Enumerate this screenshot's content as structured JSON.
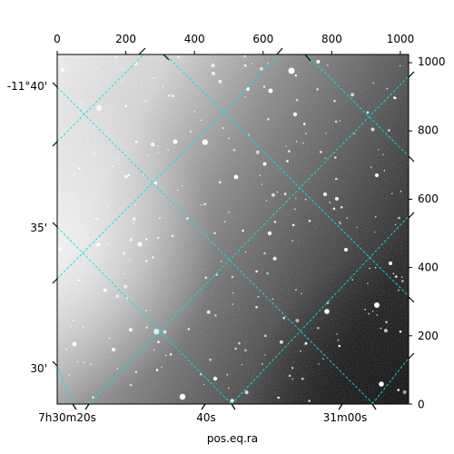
{
  "chart_data": {
    "type": "image",
    "colormap": "grayscale",
    "xlabel": "pos.eq.ra",
    "ylabel": "",
    "pixel_axes": {
      "x_ticks": [
        "0",
        "200",
        "400",
        "600",
        "800",
        "1000"
      ],
      "x_values": [
        0,
        200,
        400,
        600,
        800,
        1000
      ],
      "xlim": [
        0,
        1024
      ],
      "y_ticks": [
        "0",
        "200",
        "400",
        "600",
        "800",
        "1000"
      ],
      "y_values": [
        0,
        200,
        400,
        600,
        800,
        1000
      ],
      "ylim": [
        0,
        1024
      ]
    },
    "world_axes": {
      "ra_ticks": [
        "7h30m20s",
        "40s",
        "31m00s"
      ],
      "dec_ticks": [
        "-11°40'",
        "35'",
        "30'"
      ]
    },
    "grid": true,
    "grid_color": "#00e5e5"
  }
}
